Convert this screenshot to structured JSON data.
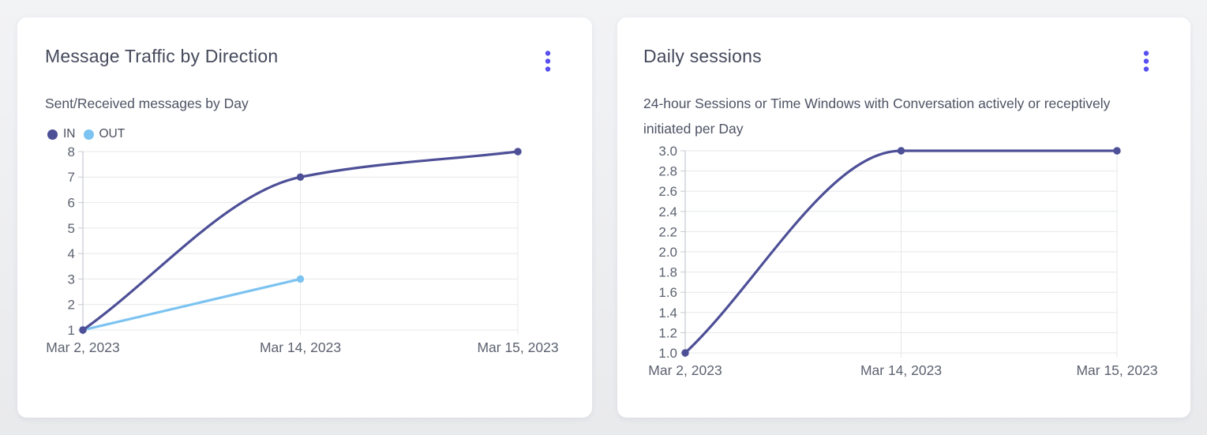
{
  "colors": {
    "page_background_top": "#f2f3f5",
    "page_background_bottom": "#e9eaec",
    "card_background": "#ffffff",
    "title_text": "#454a5c",
    "subtitle_text": "#4e5364",
    "axis_label_text": "#5c6270",
    "grid_line": "#e6e7ea",
    "axis_line": "#c6c9d1",
    "series_indigo": "#4d4f97",
    "series_light_blue": "#7cc3f1",
    "menu_icon": "#5750f0"
  },
  "cards": [
    {
      "title": "Message Traffic by Direction",
      "subtitle": "Sent/Received messages by Day",
      "menu_icon": "kebab-menu-icon",
      "legend": [
        {
          "label": "IN",
          "color": "#4d4f97"
        },
        {
          "label": "OUT",
          "color": "#7cc3f1"
        }
      ]
    },
    {
      "title": "Daily sessions",
      "subtitle": "24-hour Sessions or Time Windows with Conversation actively or receptively initiated per Day",
      "menu_icon": "kebab-menu-icon",
      "legend": []
    }
  ],
  "chart_data": [
    {
      "type": "line",
      "title": "Message Traffic by Direction",
      "subtitle": "Sent/Received messages by Day",
      "x": [
        "Mar 2, 2023",
        "Mar 14, 2023",
        "Mar 15, 2023"
      ],
      "series": [
        {
          "name": "IN",
          "color": "#4d4f97",
          "values": [
            1,
            7,
            8
          ]
        },
        {
          "name": "OUT",
          "color": "#7cc3f1",
          "values": [
            1,
            3,
            null
          ]
        }
      ],
      "xlabel": "",
      "ylabel": "",
      "ylim": [
        1,
        8
      ],
      "yticks": [
        "8",
        "7",
        "6",
        "5",
        "4",
        "3",
        "2",
        "1"
      ],
      "grid": true,
      "curve": "smooth",
      "legend_position": "top-left"
    },
    {
      "type": "line",
      "title": "Daily sessions",
      "subtitle": "24-hour Sessions or Time Windows with Conversation actively or receptively initiated per Day",
      "x": [
        "Mar 2, 2023",
        "Mar 14, 2023",
        "Mar 15, 2023"
      ],
      "series": [
        {
          "name": "Daily sessions",
          "color": "#4d4f97",
          "values": [
            1.0,
            3.0,
            3.0
          ]
        }
      ],
      "xlabel": "",
      "ylabel": "",
      "ylim": [
        1.0,
        3.0
      ],
      "yticks": [
        "3.0",
        "2.8",
        "2.6",
        "2.4",
        "2.2",
        "2.0",
        "1.8",
        "1.6",
        "1.4",
        "1.2",
        "1.0"
      ],
      "grid": true,
      "curve": "smooth",
      "legend_position": "none"
    }
  ]
}
